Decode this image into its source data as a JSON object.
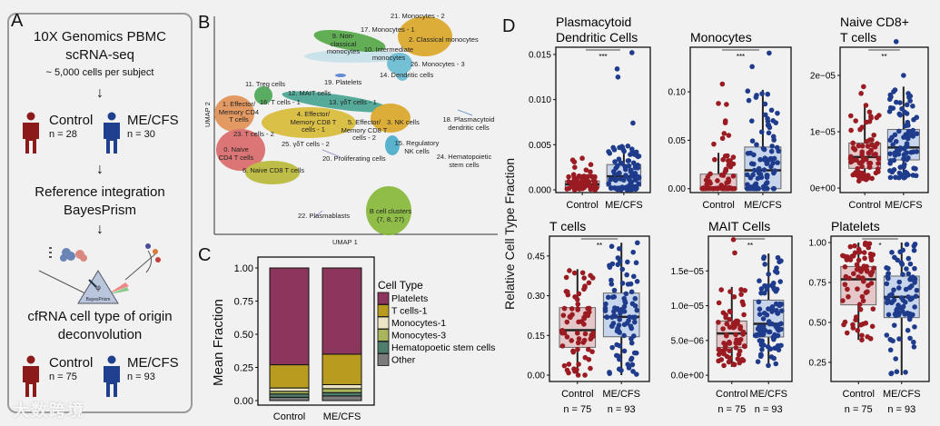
{
  "panel_labels": {
    "a": "A",
    "b": "B",
    "c": "C",
    "d": "D"
  },
  "panel_a": {
    "step1_line1": "10X Genomics PBMC",
    "step1_line2": "scRNA-seq",
    "step1_note": "~ 5,000 cells per subject",
    "cohort1": {
      "control": "Control",
      "control_n": "n = 28",
      "case": "ME/CFS",
      "case_n": "n = 30"
    },
    "step2_line1": "Reference integration",
    "step2_line2": "BayesPrism",
    "prism_label": "BayesPrism",
    "step3_line1": "cfRNA cell type of origin",
    "step3_line2": "deconvolution",
    "cohort2": {
      "control": "Control",
      "control_n": "n = 75",
      "case": "ME/CFS",
      "case_n": "n = 93"
    },
    "arrow": "↓",
    "watermark": "大数跨境",
    "colors": {
      "control": "#8b1a1a",
      "case": "#1f3f8f"
    }
  },
  "panel_b": {
    "xlabel": "UMAP 1",
    "ylabel": "UMAP 2",
    "clusters": [
      "21. Monocytes - 2",
      "17. Monocytes - 1",
      "9. Non-classical monocytes",
      "2. Classical monocytes",
      "10. Intermediate monocytes",
      "26. Monocytes - 3",
      "14. Dendritic cells",
      "19. Platelets",
      "11. Treg cells",
      "12. MAIT cells",
      "16. T cells - 1",
      "13. γδT cells - 1",
      "1. Effector/ Memory CD4 T cells",
      "4. Effector/ Memory CD8 T cells - 1",
      "5. Effector/ Memory CD8 T cells - 2",
      "3. NK cells",
      "18. Plasmacytoid dendritic cells",
      "23. T cells - 2",
      "25. γδT cells - 2",
      "15. Regulatory NK cells",
      "0. Naive CD4 T cells",
      "24. Hematopoietic stem cells",
      "20. Proliferating cells",
      "6. Naive CD8 T cells",
      "22. Plasmablasts",
      "B cell clusters (7, 8, 27)"
    ]
  },
  "chart_data": [
    {
      "type": "bar",
      "stacked": true,
      "ylabel": "Mean Fraction",
      "categories": [
        "Control",
        "ME/CFS"
      ],
      "yticks": [
        "0.00",
        "0.25",
        "0.50",
        "0.75",
        "1.00"
      ],
      "ylim": [
        0,
        1
      ],
      "legend_title": "Cell Type",
      "legend_position": "right",
      "series": [
        {
          "name": "Other",
          "color": "#7b7b7b",
          "values": [
            0.025,
            0.035
          ]
        },
        {
          "name": "Hematopoetic stem cells",
          "color": "#4f7f6c",
          "values": [
            0.025,
            0.025
          ]
        },
        {
          "name": "Monocytes-3",
          "color": "#aab45c",
          "values": [
            0.02,
            0.03
          ]
        },
        {
          "name": "Monocytes-1",
          "color": "#ebe5c3",
          "values": [
            0.025,
            0.03
          ]
        },
        {
          "name": "T cells-1",
          "color": "#b99b1f",
          "values": [
            0.175,
            0.23
          ]
        },
        {
          "name": "Platelets",
          "color": "#8c365d",
          "values": [
            0.73,
            0.65
          ]
        }
      ]
    },
    {
      "type": "box",
      "shared_ylabel": "Relative Cell Type Fraction",
      "group_colors": {
        "control_fill": "#e5c7c9",
        "control_point": "#9a1b22",
        "case_fill": "#c7d5ec",
        "case_point": "#1f3c8c"
      },
      "categories": [
        "Control",
        "ME/CFS"
      ],
      "n_labels": [
        "n = 75",
        "n = 93"
      ],
      "n": [
        75,
        93
      ],
      "panels": [
        {
          "title": "Plasmacytoid Dendritic Cells",
          "title_lines": [
            "Plasmacytoid",
            "Dendritic Cells"
          ],
          "sig": "***",
          "ylim": [
            -0.0003,
            0.0158
          ],
          "yticks": [
            {
              "v": 0,
              "l": "0.000"
            },
            {
              "v": 0.005,
              "l": "0.005"
            },
            {
              "v": 0.01,
              "l": "0.010"
            },
            {
              "v": 0.015,
              "l": "0.015"
            }
          ],
          "control": {
            "lo": 0,
            "q1": 0.0003,
            "med": 0.0006,
            "q3": 0.001,
            "hi": 0.0017,
            "outliers": [
              0.0035,
              0.0033,
              0.0031,
              0.0028,
              0.0025,
              0.0022,
              0.002
            ]
          },
          "case": {
            "lo": 0,
            "q1": 0.0004,
            "med": 0.0015,
            "q3": 0.0028,
            "hi": 0.0049,
            "outliers": [
              0.0152,
              0.0134,
              0.0125,
              0.0074
            ]
          }
        },
        {
          "title": "Monocytes",
          "title_lines": [
            "Monocytes"
          ],
          "sig": "***",
          "ylim": [
            -0.004,
            0.146
          ],
          "yticks": [
            {
              "v": 0,
              "l": "0.00"
            },
            {
              "v": 0.05,
              "l": "0.05"
            },
            {
              "v": 0.1,
              "l": "0.10"
            }
          ],
          "control": {
            "lo": 0,
            "q1": 0,
            "med": 0.001,
            "q3": 0.015,
            "hi": 0.037,
            "outliers": [
              0.108,
              0.088,
              0.087,
              0.07,
              0.068,
              0.057,
              0.055,
              0.052,
              0.046,
              0.03,
              0.03
            ]
          },
          "case": {
            "lo": 0,
            "q1": 0,
            "med": 0.019,
            "q3": 0.043,
            "hi": 0.102,
            "outliers": [
              0.14,
              0.126
            ]
          }
        },
        {
          "title": "Naive CD8+ T cells",
          "title_lines": [
            "Naive CD8+",
            "T cells"
          ],
          "sig": "**",
          "ylim": [
            -8e-07,
            2.5e-05
          ],
          "yticks": [
            {
              "v": 0,
              "l": "0e+00"
            },
            {
              "v": 1e-05,
              "l": "1e−05"
            },
            {
              "v": 2e-05,
              "l": "2e−05"
            }
          ],
          "control": {
            "lo": 1.2e-06,
            "q1": 3.5e-06,
            "med": 5.5e-06,
            "q3": 8e-06,
            "hi": 1.48e-05,
            "outliers": [
              1.8e-05,
              1.68e-05
            ]
          },
          "case": {
            "lo": 1.8e-06,
            "q1": 5e-06,
            "med": 7.2e-06,
            "q3": 1.04e-05,
            "hi": 1.8e-05,
            "outliers": [
              2.6e-05,
              2e-05
            ]
          }
        },
        {
          "title": "T cells",
          "title_lines": [
            "T cells"
          ],
          "sig": "**",
          "ylim": [
            -0.024,
            0.525
          ],
          "yticks": [
            {
              "v": 0,
              "l": "0.00"
            },
            {
              "v": 0.15,
              "l": "0.15"
            },
            {
              "v": 0.3,
              "l": "0.30"
            },
            {
              "v": 0.45,
              "l": "0.45"
            }
          ],
          "control": {
            "lo": 0,
            "q1": 0.105,
            "med": 0.17,
            "q3": 0.255,
            "hi": 0.4,
            "outliers": []
          },
          "case": {
            "lo": 0,
            "q1": 0.145,
            "med": 0.22,
            "q3": 0.31,
            "hi": 0.5,
            "outliers": []
          }
        },
        {
          "title": "MAIT Cells",
          "title_lines": [
            "MAIT Cells"
          ],
          "sig": "**",
          "ylim": [
            -9e-07,
            2e-05
          ],
          "yticks": [
            {
              "v": 0,
              "l": "0.0e+00"
            },
            {
              "v": 5e-06,
              "l": "5.0e−06"
            },
            {
              "v": 1e-05,
              "l": "1.0e−05"
            },
            {
              "v": 1.5e-05,
              "l": "1.5e−05"
            }
          ],
          "control": {
            "lo": 1.2e-06,
            "q1": 4e-06,
            "med": 6e-06,
            "q3": 7.8e-06,
            "hi": 1.27e-05,
            "outliers": [
              1.95e-05,
              1.76e-05
            ]
          },
          "case": {
            "lo": 1.4e-06,
            "q1": 5.5e-06,
            "med": 7.4e-06,
            "q3": 1.08e-05,
            "hi": 1.75e-05,
            "outliers": []
          }
        },
        {
          "title": "Platelets",
          "title_lines": [
            "Platelets"
          ],
          "sig": "*",
          "ylim": [
            0.13,
            1.04
          ],
          "yticks": [
            {
              "v": 0.25,
              "l": "0.25"
            },
            {
              "v": 0.5,
              "l": "0.50"
            },
            {
              "v": 0.75,
              "l": "0.75"
            },
            {
              "v": 1,
              "l": "1.00"
            }
          ],
          "control": {
            "lo": 0.39,
            "q1": 0.61,
            "med": 0.77,
            "q3": 0.85,
            "hi": 1.0,
            "outliers": []
          },
          "case": {
            "lo": 0.17,
            "q1": 0.53,
            "med": 0.66,
            "q3": 0.79,
            "hi": 1.0,
            "outliers": []
          }
        }
      ]
    }
  ]
}
